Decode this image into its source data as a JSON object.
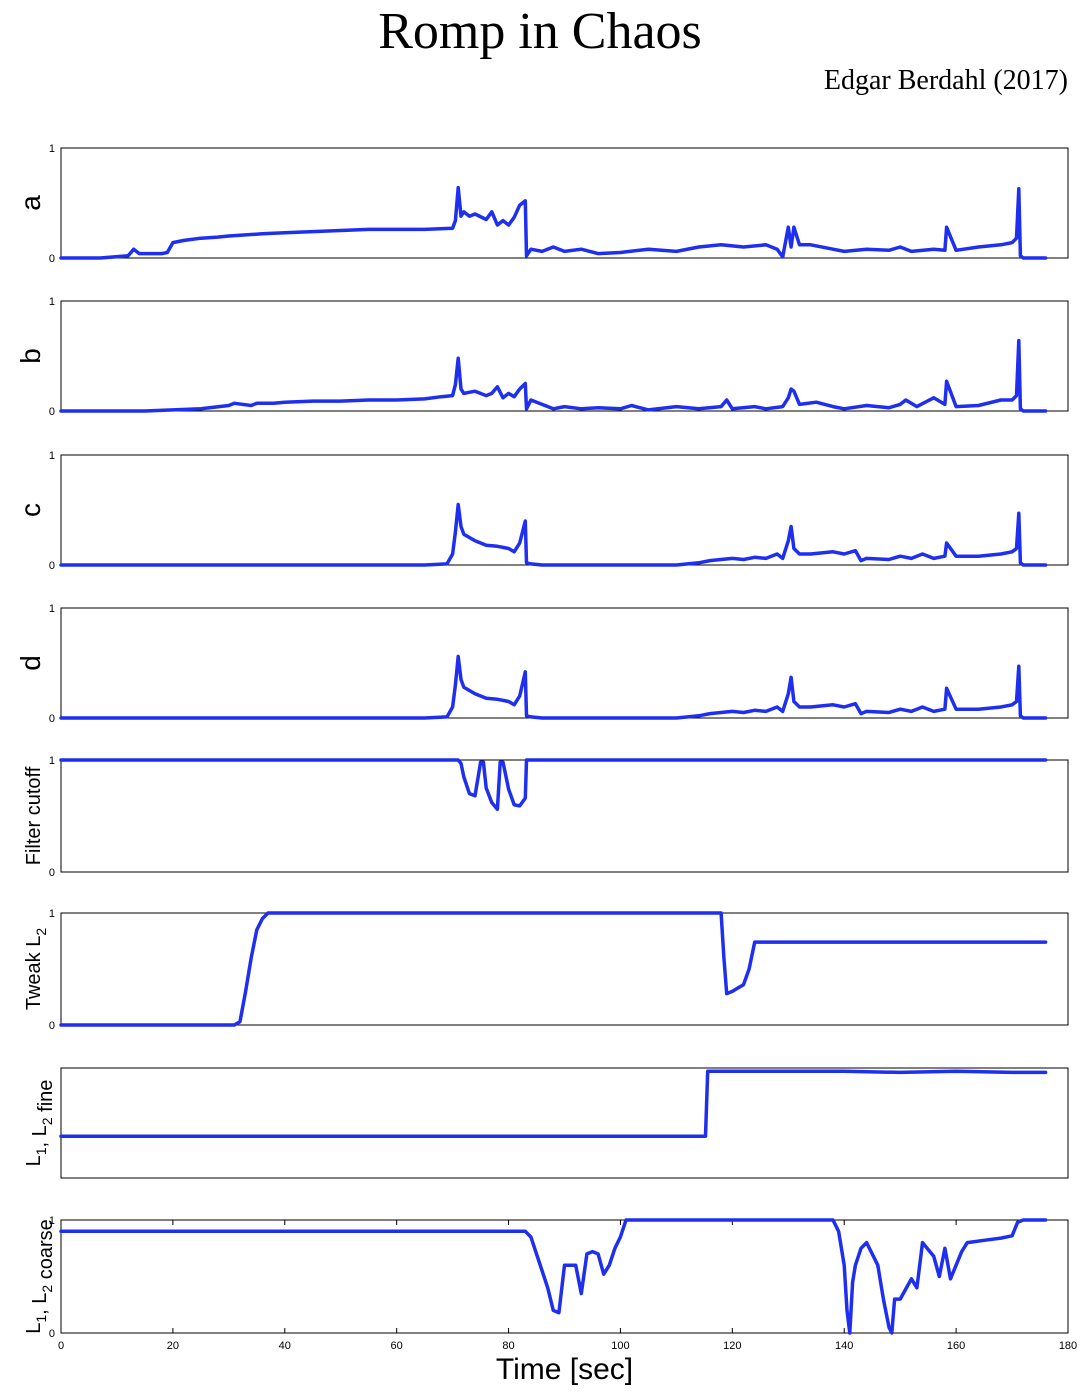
{
  "title": "Romp in Chaos",
  "author": "Edgar Berdahl (2017)",
  "line_color": "#1f2ff0",
  "chart_data": [
    {
      "type": "line",
      "name_label": "a",
      "ylabel": "a",
      "yticks": [
        "0",
        "1"
      ],
      "ylim": [
        0,
        1
      ],
      "xlim": [
        0,
        180
      ],
      "show_xticks": false,
      "x": [
        0,
        7,
        12,
        13,
        14,
        18,
        19,
        20,
        22,
        25,
        28,
        30,
        33,
        36,
        40,
        45,
        50,
        55,
        60,
        65,
        70,
        70.5,
        71,
        71.5,
        72,
        73,
        74,
        76,
        77,
        78,
        79,
        80,
        81,
        82,
        83,
        83.2,
        84,
        86,
        88,
        90,
        93,
        96,
        100,
        105,
        110,
        114,
        118,
        122,
        126,
        128,
        129,
        130,
        130.5,
        131,
        132,
        134,
        138,
        140,
        144,
        148,
        150,
        152,
        156,
        158,
        158.3,
        160,
        164,
        168,
        170,
        170.8,
        171.2,
        171.5,
        172,
        176
      ],
      "y": [
        0,
        0,
        0.02,
        0.08,
        0.04,
        0.04,
        0.05,
        0.14,
        0.16,
        0.18,
        0.19,
        0.2,
        0.21,
        0.22,
        0.23,
        0.24,
        0.25,
        0.26,
        0.26,
        0.26,
        0.27,
        0.34,
        0.64,
        0.38,
        0.42,
        0.38,
        0.4,
        0.35,
        0.42,
        0.3,
        0.34,
        0.3,
        0.37,
        0.48,
        0.52,
        0.02,
        0.08,
        0.06,
        0.1,
        0.06,
        0.08,
        0.04,
        0.05,
        0.08,
        0.06,
        0.1,
        0.12,
        0.1,
        0.12,
        0.08,
        0.01,
        0.28,
        0.1,
        0.28,
        0.12,
        0.12,
        0.08,
        0.06,
        0.08,
        0.07,
        0.1,
        0.06,
        0.08,
        0.07,
        0.28,
        0.07,
        0.1,
        0.12,
        0.14,
        0.18,
        0.63,
        0.02,
        0,
        0
      ]
    },
    {
      "type": "line",
      "name_label": "b",
      "ylabel": "b",
      "yticks": [
        "0",
        "1"
      ],
      "ylim": [
        0,
        1
      ],
      "xlim": [
        0,
        180
      ],
      "show_xticks": false,
      "x": [
        0,
        15,
        20,
        25,
        30,
        31,
        34,
        35,
        38,
        40,
        45,
        50,
        55,
        60,
        65,
        68,
        70,
        70.5,
        71,
        71.5,
        72,
        74,
        76,
        77,
        78,
        79,
        80,
        81,
        82,
        83,
        83.2,
        84,
        86,
        88,
        90,
        93,
        96,
        100,
        102,
        105,
        110,
        114,
        118,
        119,
        120,
        124,
        126,
        129,
        130,
        130.5,
        131,
        132,
        135,
        138,
        140,
        144,
        148,
        150,
        151,
        153,
        156,
        158,
        158.3,
        160,
        164,
        168,
        170,
        170.8,
        171.2,
        171.5,
        172,
        176
      ],
      "y": [
        0,
        0,
        0.01,
        0.02,
        0.05,
        0.07,
        0.05,
        0.07,
        0.07,
        0.08,
        0.09,
        0.09,
        0.1,
        0.1,
        0.11,
        0.13,
        0.14,
        0.24,
        0.48,
        0.2,
        0.16,
        0.18,
        0.14,
        0.16,
        0.22,
        0.12,
        0.16,
        0.13,
        0.2,
        0.25,
        0.02,
        0.1,
        0.06,
        0.02,
        0.04,
        0.02,
        0.03,
        0.02,
        0.05,
        0.01,
        0.04,
        0.02,
        0.04,
        0.1,
        0.02,
        0.04,
        0.02,
        0.04,
        0.12,
        0.2,
        0.18,
        0.06,
        0.08,
        0.04,
        0.02,
        0.05,
        0.03,
        0.06,
        0.1,
        0.04,
        0.12,
        0.06,
        0.27,
        0.04,
        0.05,
        0.1,
        0.1,
        0.14,
        0.64,
        0.02,
        0,
        0
      ]
    },
    {
      "type": "line",
      "name_label": "c",
      "ylabel": "c",
      "yticks": [
        "0",
        "1"
      ],
      "ylim": [
        0,
        1
      ],
      "xlim": [
        0,
        180
      ],
      "show_xticks": false,
      "x": [
        0,
        65,
        69,
        70,
        70.5,
        71,
        71.5,
        72,
        74,
        76,
        78,
        79,
        80,
        81,
        82,
        83,
        83.2,
        84,
        86,
        90,
        100,
        110,
        112,
        114,
        116,
        118,
        120,
        122,
        124,
        126,
        128,
        129,
        130,
        130.5,
        131,
        132,
        134,
        138,
        140,
        142,
        143,
        144,
        148,
        150,
        152,
        154,
        156,
        158,
        158.3,
        160,
        164,
        168,
        170,
        170.8,
        171.2,
        171.5,
        172,
        176
      ],
      "y": [
        0,
        0,
        0.01,
        0.1,
        0.3,
        0.55,
        0.35,
        0.28,
        0.22,
        0.18,
        0.17,
        0.16,
        0.15,
        0.12,
        0.2,
        0.4,
        0.02,
        0.01,
        0,
        0,
        0,
        0,
        0.01,
        0.02,
        0.04,
        0.05,
        0.06,
        0.05,
        0.07,
        0.06,
        0.1,
        0.06,
        0.22,
        0.35,
        0.15,
        0.1,
        0.1,
        0.12,
        0.1,
        0.13,
        0.04,
        0.06,
        0.05,
        0.08,
        0.06,
        0.1,
        0.06,
        0.08,
        0.2,
        0.08,
        0.08,
        0.1,
        0.12,
        0.15,
        0.47,
        0.02,
        0,
        0
      ]
    },
    {
      "type": "line",
      "name_label": "d",
      "ylabel": "d",
      "yticks": [
        "0",
        "1"
      ],
      "ylim": [
        0,
        1
      ],
      "xlim": [
        0,
        180
      ],
      "show_xticks": false,
      "x": [
        0,
        65,
        69,
        70,
        70.5,
        71,
        71.5,
        72,
        74,
        76,
        78,
        79,
        80,
        81,
        82,
        83,
        83.2,
        84,
        86,
        90,
        100,
        110,
        112,
        114,
        116,
        118,
        120,
        122,
        124,
        126,
        128,
        129,
        130,
        130.5,
        131,
        132,
        134,
        138,
        140,
        142,
        143,
        144,
        148,
        150,
        152,
        154,
        156,
        158,
        158.3,
        160,
        164,
        168,
        170,
        170.8,
        171.2,
        171.5,
        172,
        176
      ],
      "y": [
        0,
        0,
        0.01,
        0.1,
        0.3,
        0.56,
        0.35,
        0.28,
        0.22,
        0.18,
        0.17,
        0.16,
        0.15,
        0.12,
        0.2,
        0.42,
        0.02,
        0.01,
        0,
        0,
        0,
        0,
        0.01,
        0.02,
        0.04,
        0.05,
        0.06,
        0.05,
        0.07,
        0.06,
        0.1,
        0.06,
        0.22,
        0.37,
        0.15,
        0.1,
        0.1,
        0.12,
        0.1,
        0.13,
        0.04,
        0.06,
        0.05,
        0.08,
        0.06,
        0.1,
        0.06,
        0.08,
        0.27,
        0.08,
        0.08,
        0.1,
        0.12,
        0.15,
        0.47,
        0.02,
        0,
        0
      ]
    },
    {
      "type": "line",
      "name_label": "filter-cutoff",
      "ylabel": "Filter cutoff",
      "yticks": [
        "0",
        "1"
      ],
      "ylim": [
        0,
        1
      ],
      "xlim": [
        0,
        180
      ],
      "show_xticks": false,
      "x": [
        0,
        71,
        71.5,
        72,
        73,
        74,
        75,
        75.5,
        76,
        77,
        78,
        78.5,
        79,
        80,
        81,
        82,
        83,
        83.2,
        84,
        100,
        120,
        140,
        160,
        176
      ],
      "y": [
        1,
        1,
        0.97,
        0.85,
        0.7,
        0.68,
        0.98,
        0.98,
        0.75,
        0.62,
        0.56,
        0.98,
        0.98,
        0.74,
        0.6,
        0.59,
        0.66,
        1,
        1,
        1,
        1,
        1,
        1,
        1
      ]
    },
    {
      "type": "line",
      "name_label": "tweak-l2",
      "ylabel": "Tweak L2",
      "yticks": [
        "0",
        "1"
      ],
      "ylim": [
        0,
        1
      ],
      "xlim": [
        0,
        180
      ],
      "show_xticks": false,
      "x": [
        0,
        31,
        32,
        33,
        34,
        35,
        36,
        37,
        40,
        60,
        80,
        100,
        115,
        118,
        118.5,
        119,
        120,
        121,
        122,
        123,
        124,
        130,
        140,
        150,
        160,
        170,
        176
      ],
      "y": [
        0,
        0,
        0.03,
        0.3,
        0.6,
        0.85,
        0.95,
        1,
        1,
        1,
        1,
        1,
        1,
        1,
        0.6,
        0.28,
        0.3,
        0.33,
        0.36,
        0.5,
        0.74,
        0.74,
        0.74,
        0.74,
        0.74,
        0.74,
        0.74
      ]
    },
    {
      "type": "line",
      "name_label": "l1-l2-fine",
      "ylabel": "L1, L2 fine",
      "yticks": [],
      "ylim": [
        0,
        1
      ],
      "xlim": [
        0,
        180
      ],
      "show_xticks": false,
      "x": [
        0,
        20,
        40,
        60,
        80,
        100,
        114,
        115.2,
        115.6,
        117,
        120,
        130,
        140,
        150,
        160,
        170,
        176
      ],
      "y": [
        0.38,
        0.38,
        0.38,
        0.38,
        0.38,
        0.38,
        0.38,
        0.38,
        0.97,
        0.97,
        0.97,
        0.97,
        0.97,
        0.96,
        0.97,
        0.96,
        0.96
      ]
    },
    {
      "type": "line",
      "name_label": "l1-l2-coarse",
      "ylabel": "L1, L2 coarse",
      "yticks": [
        "0",
        "1"
      ],
      "ylim": [
        0,
        1
      ],
      "xlim": [
        0,
        180
      ],
      "show_xticks": true,
      "xticks": [
        "0",
        "20",
        "40",
        "60",
        "80",
        "100",
        "120",
        "140",
        "160",
        "180"
      ],
      "xlabel": "Time [sec]",
      "x": [
        0,
        20,
        40,
        60,
        80,
        83,
        84,
        85,
        86,
        87,
        88,
        89,
        90,
        92,
        93,
        94,
        95,
        96,
        97,
        98,
        99,
        100,
        101,
        102,
        110,
        120,
        130,
        138,
        139,
        140,
        140.5,
        141,
        141.5,
        142,
        143,
        144,
        146,
        147,
        148,
        148.5,
        149,
        150,
        152,
        153,
        154,
        156,
        157,
        158,
        159,
        160,
        161,
        162,
        165,
        168,
        170,
        171,
        172,
        176
      ],
      "y": [
        0.9,
        0.9,
        0.9,
        0.9,
        0.9,
        0.9,
        0.85,
        0.7,
        0.55,
        0.4,
        0.2,
        0.18,
        0.6,
        0.6,
        0.35,
        0.7,
        0.72,
        0.7,
        0.52,
        0.6,
        0.75,
        0.85,
        1,
        1,
        1,
        1,
        1,
        1,
        0.9,
        0.6,
        0.2,
        0,
        0.45,
        0.6,
        0.75,
        0.8,
        0.6,
        0.3,
        0.05,
        0,
        0.3,
        0.3,
        0.48,
        0.4,
        0.8,
        0.68,
        0.5,
        0.75,
        0.48,
        0.6,
        0.72,
        0.8,
        0.82,
        0.84,
        0.86,
        0.98,
        1,
        1
      ]
    }
  ]
}
